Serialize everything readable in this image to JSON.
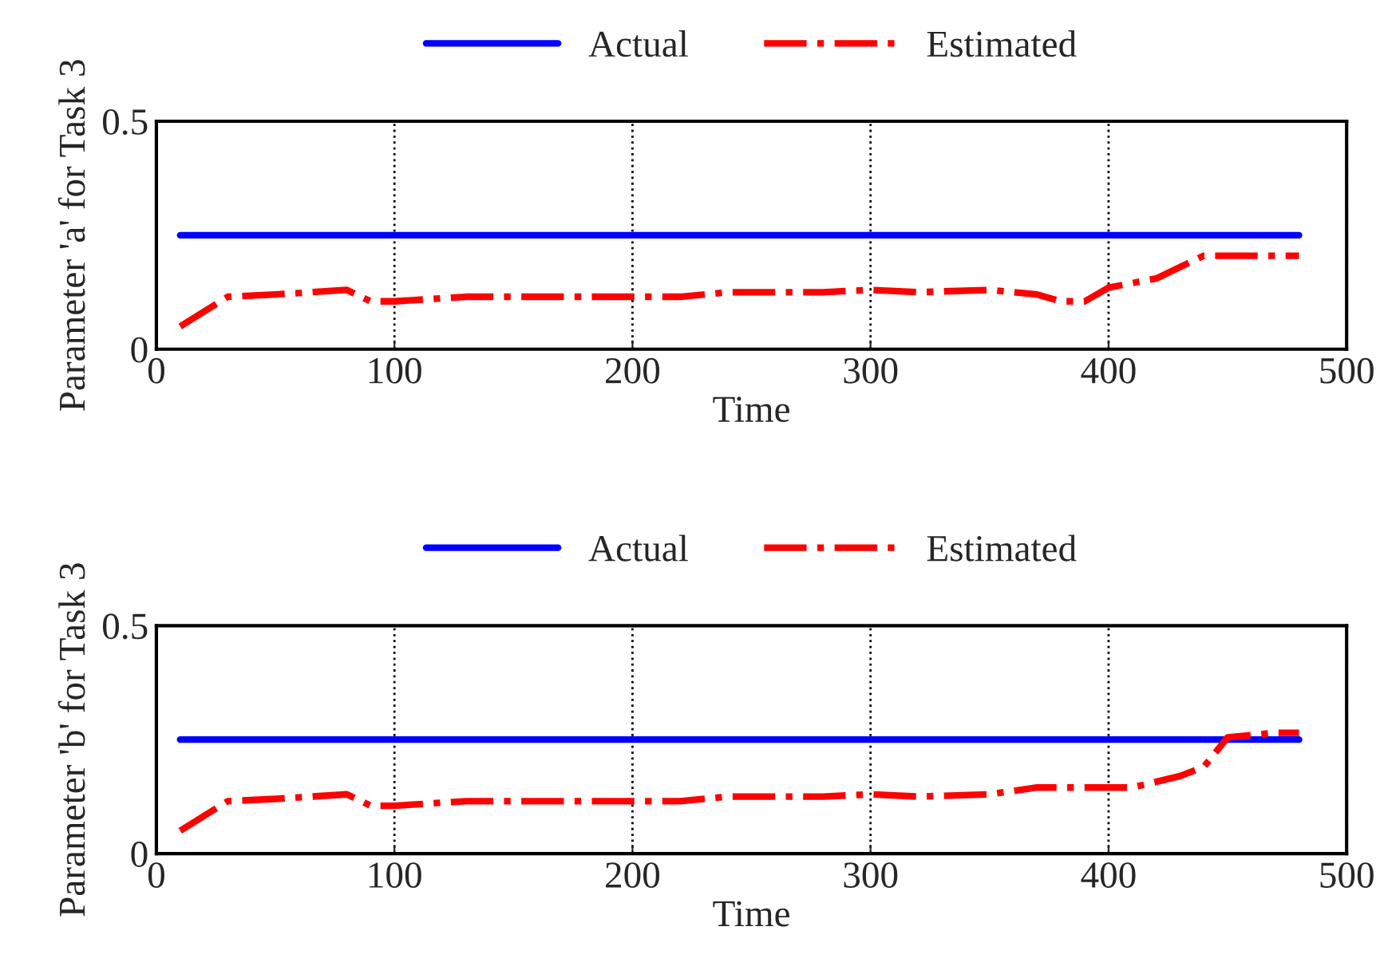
{
  "chart_data": [
    {
      "type": "line",
      "xlabel": "Time",
      "ylabel": "Parameter 'a' for Task 3",
      "xlim": [
        0,
        500
      ],
      "ylim": [
        0,
        0.5
      ],
      "xticks": [
        0,
        100,
        200,
        300,
        400,
        500
      ],
      "yticks": [
        0,
        0.5
      ],
      "grid": "x",
      "legend": "top",
      "series": [
        {
          "name": "Actual",
          "color": "#0000ff",
          "line_style": "solid",
          "x": [
            10,
            480
          ],
          "values": [
            0.25,
            0.25
          ]
        },
        {
          "name": "Estimated",
          "color": "#ff0000",
          "line_style": "dashdot",
          "x": [
            10,
            30,
            50,
            80,
            90,
            100,
            130,
            200,
            220,
            240,
            280,
            300,
            320,
            350,
            370,
            380,
            390,
            400,
            420,
            440,
            480
          ],
          "values": [
            0.05,
            0.115,
            0.12,
            0.13,
            0.105,
            0.105,
            0.115,
            0.115,
            0.115,
            0.125,
            0.125,
            0.13,
            0.125,
            0.13,
            0.12,
            0.105,
            0.105,
            0.135,
            0.155,
            0.205,
            0.205
          ]
        }
      ]
    },
    {
      "type": "line",
      "xlabel": "Time",
      "ylabel": "Parameter 'b' for Task 3",
      "xlim": [
        0,
        500
      ],
      "ylim": [
        0,
        0.5
      ],
      "xticks": [
        0,
        100,
        200,
        300,
        400,
        500
      ],
      "yticks": [
        0,
        0.5
      ],
      "grid": "x",
      "legend": "top",
      "series": [
        {
          "name": "Actual",
          "color": "#0000ff",
          "line_style": "solid",
          "x": [
            10,
            480
          ],
          "values": [
            0.25,
            0.25
          ]
        },
        {
          "name": "Estimated",
          "color": "#ff0000",
          "line_style": "dashdot",
          "x": [
            10,
            30,
            50,
            80,
            90,
            100,
            130,
            200,
            220,
            240,
            280,
            300,
            320,
            350,
            370,
            410,
            430,
            440,
            450,
            470,
            480
          ],
          "values": [
            0.05,
            0.115,
            0.12,
            0.13,
            0.105,
            0.105,
            0.115,
            0.115,
            0.115,
            0.125,
            0.125,
            0.13,
            0.125,
            0.13,
            0.145,
            0.145,
            0.17,
            0.19,
            0.255,
            0.265,
            0.265
          ]
        }
      ]
    }
  ]
}
